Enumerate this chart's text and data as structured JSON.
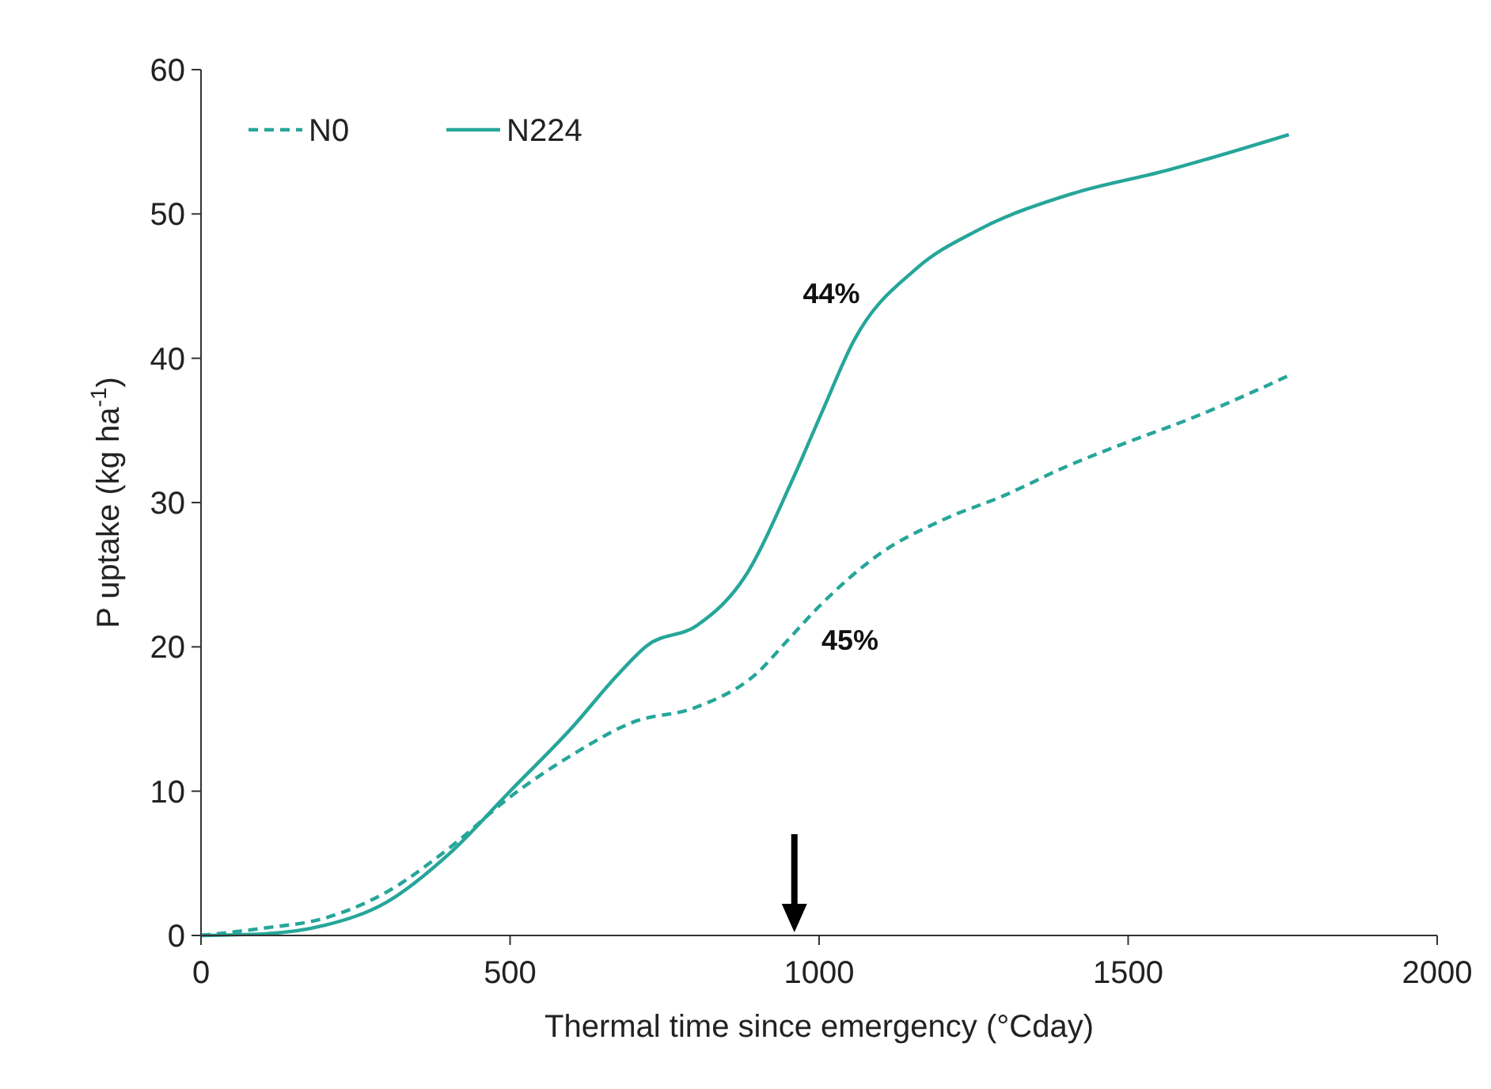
{
  "chart_data": {
    "type": "line",
    "xlabel": "Thermal time since emergency (°Cday)",
    "ylabel": "P uptake (kg ha$^{-1}$)",
    "xlim": [
      0,
      2000
    ],
    "xticks": [
      0,
      500,
      1000,
      1500,
      2000
    ],
    "ylim": [
      0,
      60
    ],
    "yticks": [
      0,
      10,
      20,
      30,
      40,
      50,
      60
    ],
    "grid": false,
    "legend": "top left",
    "marker": "none",
    "series": [
      {
        "name": "N0",
        "color": "#26a69a",
        "line_style": "dashed",
        "x": [
          0,
          100,
          200,
          300,
          400,
          500,
          600,
          700,
          800,
          900,
          950,
          1000,
          1100,
          1200,
          1300,
          1400,
          1500,
          1600,
          1760
        ],
        "values": [
          0,
          0.5,
          1.2,
          3,
          6,
          9.6,
          12.5,
          14.8,
          15.8,
          18.2,
          20.5,
          22.8,
          26.5,
          28.8,
          30.5,
          32.5,
          34.2,
          35.8,
          38.8
        ]
      },
      {
        "name": "N224",
        "color": "#26a69a",
        "line_style": "solid",
        "x": [
          0,
          100,
          200,
          300,
          400,
          500,
          600,
          677,
          722,
          803,
          879,
          955,
          1005,
          1056,
          1157,
          1258,
          1409,
          1561,
          1760
        ],
        "values": [
          0,
          0.1,
          0.7,
          2.3,
          5.6,
          10,
          14.4,
          18.2,
          20.1,
          21.5,
          24.8,
          31.4,
          36.3,
          41.2,
          46.2,
          48.9,
          51.4,
          53,
          55.5
        ]
      }
    ],
    "annotations": [
      "44%",
      "45%"
    ]
  }
}
